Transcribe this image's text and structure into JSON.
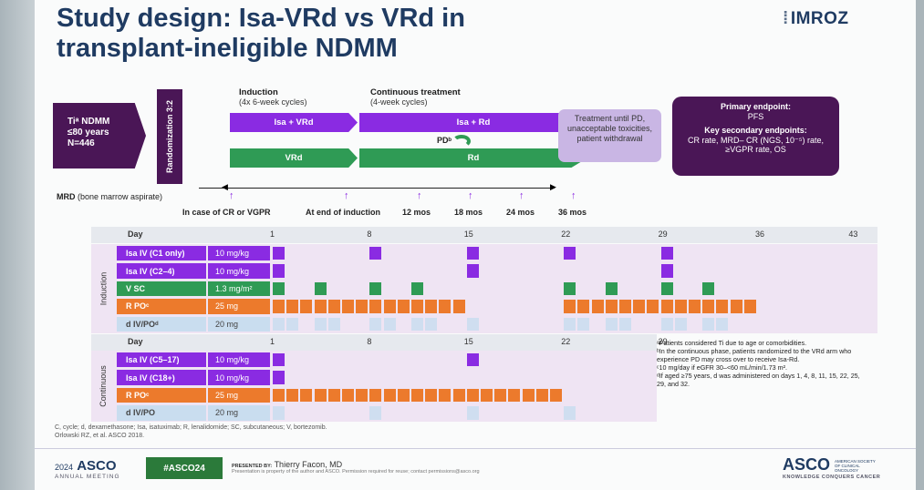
{
  "title": "Study design: Isa-VRd vs VRd in transplant-ineligible NDMM",
  "logo": "IMROZ",
  "ti_box": [
    "Tiᵃ NDMM",
    "≤80 years",
    "N=446"
  ],
  "randomization": "Randomization 3:2",
  "induction": {
    "head": "Induction",
    "sub": "(4x 6-week cycles)"
  },
  "continuous": {
    "head": "Continuous treatment",
    "sub": "(4-week cycles)"
  },
  "arms": {
    "isa_vrd": "Isa + VRd",
    "isa_rd": "Isa + Rd",
    "vrd": "VRd",
    "rd": "Rd"
  },
  "pd_label": "PDᵇ",
  "treatment_box": "Treatment until PD, unacceptable toxicities, patient withdrawal",
  "endpoints": {
    "primary_head": "Primary endpoint:",
    "primary": "PFS",
    "secondary_head": "Key secondary endpoints:",
    "secondary": "CR rate, MRD– CR (NGS, 10⁻⁵) rate, ≥VGPR rate, OS"
  },
  "mrd": {
    "label_bold": "MRD",
    "label_rest": " (bone marrow aspirate)",
    "timepoints": [
      "In case of CR or VGPR",
      "At end of induction",
      "12 mos",
      "18 mos",
      "24 mos",
      "36 mos"
    ]
  },
  "schedule": {
    "day_label": "Day",
    "induction_days": [
      "1",
      "8",
      "15",
      "22",
      "29",
      "36",
      "43"
    ],
    "continuous_days": [
      "1",
      "8",
      "15",
      "22",
      "29"
    ],
    "induction_section": "Induction",
    "continuous_section": "Continuous",
    "induction_rows": [
      {
        "label": "Isa IV (C1 only)",
        "dose": "10 mg/kg",
        "color": "#8a2be2"
      },
      {
        "label": "Isa IV (C2–4)",
        "dose": "10 mg/kg",
        "color": "#8a2be2"
      },
      {
        "label": "V SC",
        "dose": "1.3 mg/m²",
        "color": "#2f9b55"
      },
      {
        "label": "R POᶜ",
        "dose": "25 mg",
        "color": "#ec7a2c"
      },
      {
        "label": "d IV/POᵈ",
        "dose": "20 mg",
        "color": "#c9ddef"
      }
    ],
    "continuous_rows": [
      {
        "label": "Isa IV (C5–17)",
        "dose": "10 mg/kg",
        "color": "#8a2be2"
      },
      {
        "label": "Isa IV (C18+)",
        "dose": "10 mg/kg",
        "color": "#8a2be2"
      },
      {
        "label": "R POᶜ",
        "dose": "25 mg",
        "color": "#ec7a2c"
      },
      {
        "label": "d IV/PO",
        "dose": "20 mg",
        "color": "#c9ddef"
      }
    ]
  },
  "footnotes": [
    "ᵃPatients considered Ti due to age or comorbidities.",
    "ᵇIn the continuous phase, patients randomized to the VRd arm who experience PD may cross over to receive Isa-Rd.",
    "ᶜ10 mg/day if eGFR 30–<60 mL/min/1.73 m².",
    "ᵈIf aged ≥75 years, d was administered on days 1, 4, 8, 11, 15, 22, 25, 29, and 32."
  ],
  "abbreviations": "C, cycle; d, dexamethasone; Isa, isatuximab; R, lenalidomide; SC, subcutaneous; V, bortezomib.",
  "reference": "Orlowski RZ, et al. ASCO 2018.",
  "footer": {
    "meeting_year": "2024",
    "meeting_name": "ASCO",
    "meeting_sub": "ANNUAL MEETING",
    "hashtag": "#ASCO24",
    "presenter_prefix": "PRESENTED BY:",
    "presenter": "Thierry Facon, MD",
    "permission": "Presentation is property of the author and ASCO. Permission required for reuse; contact permissions@asco.org",
    "asco_right": "ASCO",
    "asco_tagline": "KNOWLEDGE CONQUERS CANCER",
    "asco_society": "AMERICAN SOCIETY OF CLINICAL ONCOLOGY"
  },
  "colors": {
    "purple": "#8a2be2",
    "green": "#2f9b55",
    "orange": "#ec7a2c",
    "dark_purple": "#4a1656",
    "navy": "#1f3b62",
    "light_blue": "#c9ddef",
    "lavender": "#c9b6e4"
  }
}
